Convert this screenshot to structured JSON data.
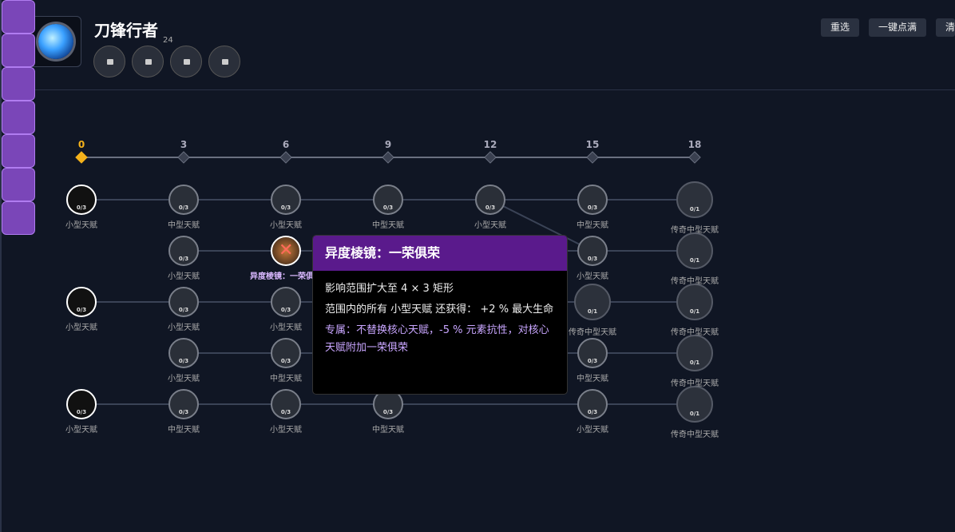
{
  "header": {
    "title": "刀锋行者",
    "count": "24"
  },
  "buttons": [
    "重选",
    "一键点满",
    "清"
  ],
  "levels": [
    0,
    3,
    6,
    9,
    12,
    15,
    18
  ],
  "tree": {
    "rows": [
      [
        {
          "state": "active",
          "count": "0/3",
          "label": "小型天赋"
        },
        {
          "state": "selected",
          "count": "0/3",
          "label": "中型天赋"
        },
        {
          "state": "selected",
          "count": "0/3",
          "label": "小型天赋"
        },
        {
          "state": "selected",
          "count": "0/3",
          "label": "中型天赋"
        },
        {
          "state": "selected",
          "count": "0/3",
          "label": "小型天赋"
        },
        {
          "state": "locked",
          "count": "0/3",
          "label": "中型天赋"
        },
        {
          "state": "legendary",
          "count": "0/1",
          "label": "传奇中型天赋"
        }
      ],
      [
        null,
        {
          "state": "selected",
          "count": "0/3",
          "label": "小型天赋"
        },
        {
          "state": "special",
          "label": "异度棱镜：一荣俱荣"
        },
        null,
        null,
        {
          "state": "locked",
          "count": "0/3",
          "label": "小型天赋"
        },
        {
          "state": "legendary",
          "count": "0/1",
          "label": "传奇中型天赋"
        }
      ],
      [
        {
          "state": "active",
          "count": "0/3",
          "label": "小型天赋"
        },
        {
          "state": "selected",
          "count": "0/3",
          "label": "小型天赋"
        },
        {
          "state": "selected",
          "count": "0/3",
          "label": "小型天赋"
        },
        null,
        null,
        {
          "state": "legendary",
          "count": "0/1",
          "label": "传奇中型天赋"
        },
        {
          "state": "legendary",
          "count": "0/1",
          "label": "传奇中型天赋"
        }
      ],
      [
        null,
        {
          "state": "locked",
          "count": "0/3",
          "label": "小型天赋"
        },
        {
          "state": "locked",
          "count": "0/3",
          "label": "中型天赋"
        },
        null,
        null,
        {
          "state": "locked",
          "count": "0/3",
          "label": "中型天赋"
        },
        {
          "state": "legendary",
          "count": "0/1",
          "label": "传奇中型天赋"
        }
      ],
      [
        {
          "state": "active",
          "count": "0/3",
          "label": "小型天赋"
        },
        {
          "state": "locked",
          "count": "0/3",
          "label": "中型天赋"
        },
        {
          "state": "locked",
          "count": "0/3",
          "label": "小型天赋"
        },
        {
          "state": "locked",
          "count": "0/3",
          "label": "中型天赋"
        },
        null,
        {
          "state": "locked",
          "count": "0/3",
          "label": "小型天赋"
        },
        {
          "state": "legendary",
          "count": "0/1",
          "label": "传奇中型天赋"
        }
      ]
    ]
  },
  "tooltip": {
    "title": "异度棱镜：一荣俱荣",
    "lines": [
      "影响范围扩大至 4 × 3 矩形",
      "范围内的所有 小型天赋 还获得： +2 % 最大生命",
      "专属：不替换核心天赋，-5 % 元素抗性，对核心天赋附加一荣俱荣"
    ]
  }
}
